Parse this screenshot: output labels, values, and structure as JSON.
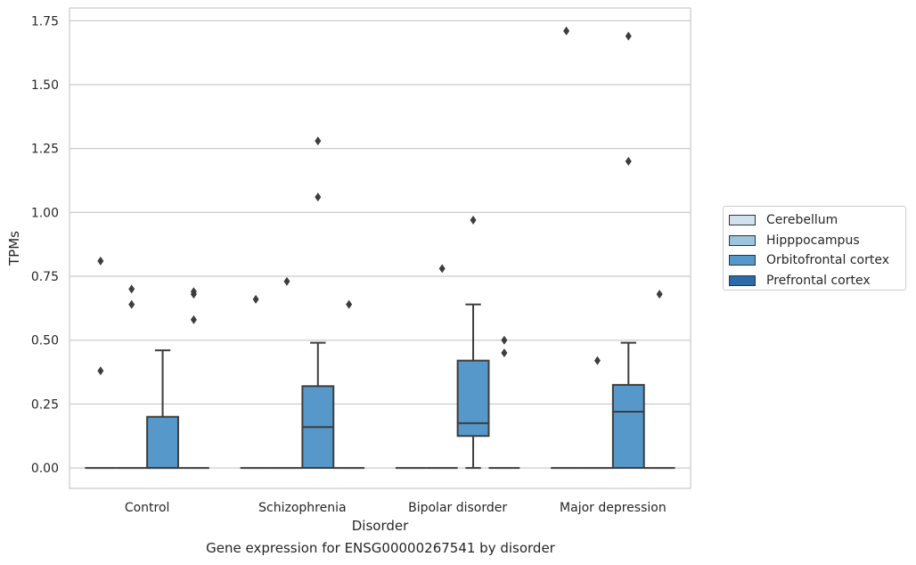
{
  "chart_data": {
    "type": "box",
    "title": "",
    "caption": "Gene expression for ENSG00000267541 by disorder",
    "xlabel": "Disorder",
    "ylabel": "TPMs",
    "ylim": [
      -0.08,
      1.8
    ],
    "yticks": [
      "0.00",
      "0.25",
      "0.50",
      "0.75",
      "1.00",
      "1.25",
      "1.50",
      "1.75"
    ],
    "ytick_values": [
      0,
      0.25,
      0.5,
      0.75,
      1.0,
      1.25,
      1.5,
      1.75
    ],
    "grid": "horizontal",
    "legend_position": "right",
    "categories": [
      "Control",
      "Schizophrenia",
      "Bipolar disorder",
      "Major depression"
    ],
    "series": [
      {
        "name": "Cerebellum",
        "color": "#d1e1ef"
      },
      {
        "name": "Hipppocampus",
        "color": "#9bc4de"
      },
      {
        "name": "Orbitofrontal cortex",
        "color": "#5598c9"
      },
      {
        "name": "Prefrontal cortex",
        "color": "#2b6ba9"
      }
    ],
    "boxes": [
      {
        "category": 0,
        "series": 0,
        "q1": 0,
        "median": 0,
        "q3": 0,
        "whisker_low": 0,
        "whisker_high": 0,
        "outliers": [
          0.38,
          0.81
        ]
      },
      {
        "category": 0,
        "series": 1,
        "q1": 0,
        "median": 0,
        "q3": 0,
        "whisker_low": 0,
        "whisker_high": 0,
        "outliers": [
          0.64,
          0.7
        ]
      },
      {
        "category": 0,
        "series": 2,
        "q1": 0,
        "median": 0,
        "q3": 0.2,
        "whisker_low": 0,
        "whisker_high": 0.46,
        "outliers": []
      },
      {
        "category": 0,
        "series": 3,
        "q1": 0,
        "median": 0,
        "q3": 0,
        "whisker_low": 0,
        "whisker_high": 0,
        "outliers": [
          0.58,
          0.68,
          0.69
        ]
      },
      {
        "category": 1,
        "series": 0,
        "q1": 0,
        "median": 0,
        "q3": 0,
        "whisker_low": 0,
        "whisker_high": 0,
        "outliers": [
          0.66
        ]
      },
      {
        "category": 1,
        "series": 1,
        "q1": 0,
        "median": 0,
        "q3": 0,
        "whisker_low": 0,
        "whisker_high": 0,
        "outliers": [
          0.73
        ]
      },
      {
        "category": 1,
        "series": 2,
        "q1": 0,
        "median": 0.16,
        "q3": 0.32,
        "whisker_low": 0,
        "whisker_high": 0.49,
        "outliers": [
          1.06,
          1.28
        ]
      },
      {
        "category": 1,
        "series": 3,
        "q1": 0,
        "median": 0,
        "q3": 0,
        "whisker_low": 0,
        "whisker_high": 0,
        "outliers": [
          0.64
        ]
      },
      {
        "category": 2,
        "series": 0,
        "q1": 0,
        "median": 0,
        "q3": 0,
        "whisker_low": 0,
        "whisker_high": 0,
        "outliers": []
      },
      {
        "category": 2,
        "series": 1,
        "q1": 0,
        "median": 0,
        "q3": 0,
        "whisker_low": 0,
        "whisker_high": 0,
        "outliers": [
          0.78
        ]
      },
      {
        "category": 2,
        "series": 2,
        "q1": 0.125,
        "median": 0.175,
        "q3": 0.42,
        "whisker_low": 0,
        "whisker_high": 0.64,
        "outliers": [
          0.97
        ]
      },
      {
        "category": 2,
        "series": 3,
        "q1": 0,
        "median": 0,
        "q3": 0,
        "whisker_low": 0,
        "whisker_high": 0,
        "outliers": [
          0.45,
          0.5
        ]
      },
      {
        "category": 3,
        "series": 0,
        "q1": 0,
        "median": 0,
        "q3": 0,
        "whisker_low": 0,
        "whisker_high": 0,
        "outliers": [
          1.71
        ]
      },
      {
        "category": 3,
        "series": 1,
        "q1": 0,
        "median": 0,
        "q3": 0,
        "whisker_low": 0,
        "whisker_high": 0,
        "outliers": [
          0.42
        ]
      },
      {
        "category": 3,
        "series": 2,
        "q1": 0,
        "median": 0.22,
        "q3": 0.325,
        "whisker_low": 0,
        "whisker_high": 0.49,
        "outliers": [
          1.2,
          1.69
        ]
      },
      {
        "category": 3,
        "series": 3,
        "q1": 0,
        "median": 0,
        "q3": 0,
        "whisker_low": 0,
        "whisker_high": 0,
        "outliers": [
          0.68
        ]
      }
    ]
  }
}
